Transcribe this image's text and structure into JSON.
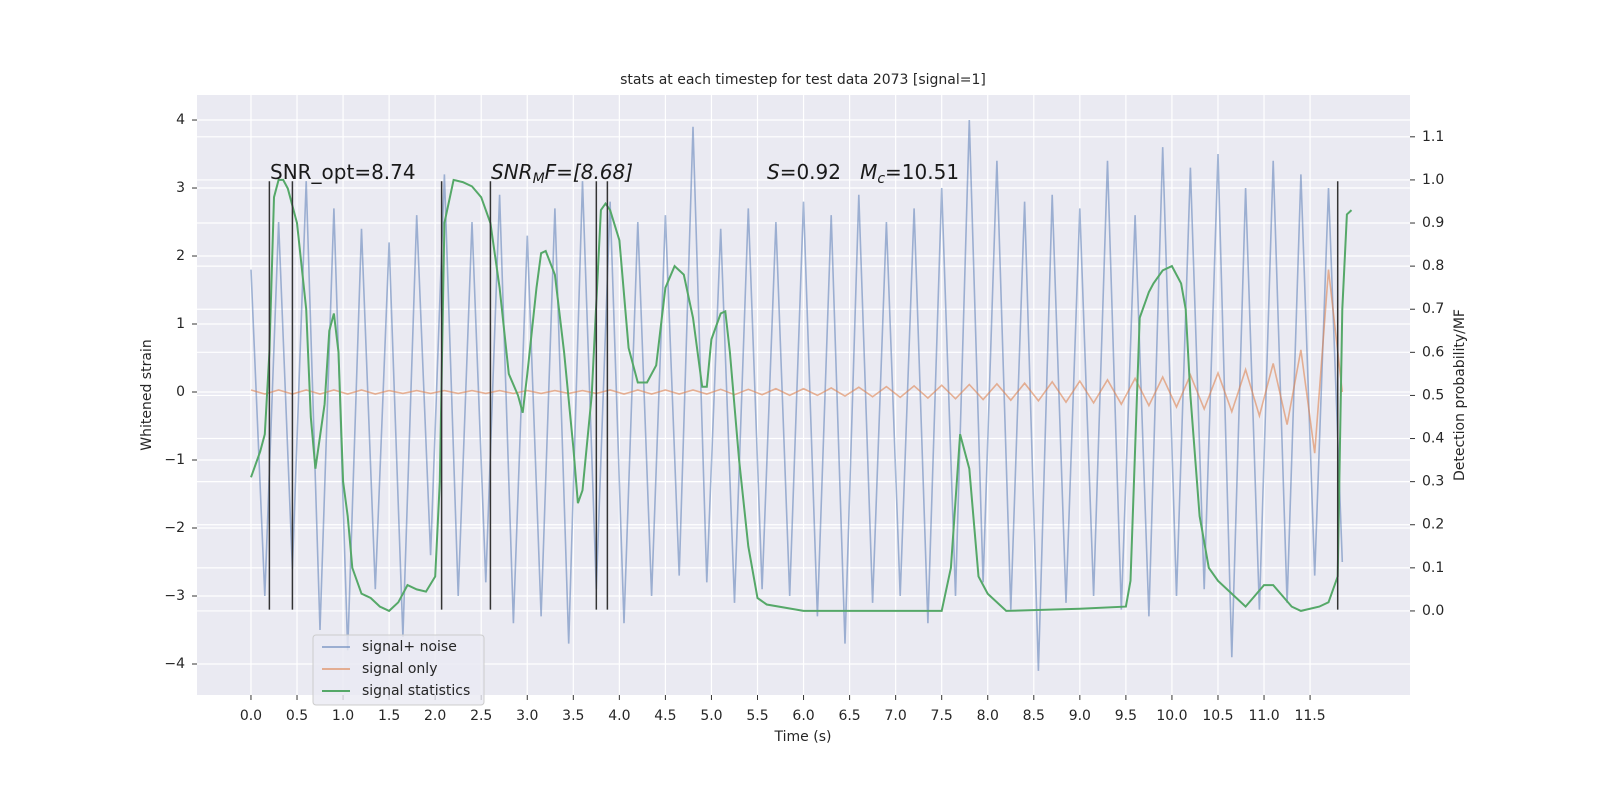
{
  "chart_data": {
    "type": "line",
    "title": "stats at each timestep for test data 2073 [signal=1]",
    "xlabel": "Time (s)",
    "ylabel": "Whitened strain",
    "y2label": "Detection probability/MF",
    "xlim": [
      -0.586,
      12.585
    ],
    "ylim": [
      -4.456,
      4.368
    ],
    "y2lim": [
      -0.195,
      1.197
    ],
    "grid": true,
    "legend": "lower left",
    "xticks": [
      {
        "value": 0,
        "label": "0.0"
      },
      {
        "value": 0.5,
        "label": "0.5"
      },
      {
        "value": 1,
        "label": "1.0"
      },
      {
        "value": 1.5,
        "label": "1.5"
      },
      {
        "value": 2,
        "label": "2.0"
      },
      {
        "value": 2.5,
        "label": "2.5"
      },
      {
        "value": 3,
        "label": "3.0"
      },
      {
        "value": 3.5,
        "label": "3.5"
      },
      {
        "value": 4,
        "label": "4.0"
      },
      {
        "value": 4.5,
        "label": "4.5"
      },
      {
        "value": 5,
        "label": "5.0"
      },
      {
        "value": 5.5,
        "label": "5.5"
      },
      {
        "value": 6,
        "label": "6.0"
      },
      {
        "value": 6.5,
        "label": "6.5"
      },
      {
        "value": 7,
        "label": "7.0"
      },
      {
        "value": 7.5,
        "label": "7.5"
      },
      {
        "value": 8,
        "label": "8.0"
      },
      {
        "value": 8.5,
        "label": "8.5"
      },
      {
        "value": 9,
        "label": "9.0"
      },
      {
        "value": 9.5,
        "label": "9.5"
      },
      {
        "value": 10,
        "label": "10.0"
      },
      {
        "value": 10.5,
        "label": "10.5"
      },
      {
        "value": 11,
        "label": "11.0"
      },
      {
        "value": 11.5,
        "label": "11.5"
      }
    ],
    "yticks": [
      {
        "value": -4,
        "label": "−4"
      },
      {
        "value": -3,
        "label": "−3"
      },
      {
        "value": -2,
        "label": "−2"
      },
      {
        "value": -1,
        "label": "−1"
      },
      0,
      1,
      2,
      3,
      4
    ],
    "y2ticks": [
      {
        "value": 0,
        "label": "0.0"
      },
      {
        "value": 0.1,
        "label": "0.1"
      },
      {
        "value": 0.2,
        "label": "0.2"
      },
      {
        "value": 0.3,
        "label": "0.3"
      },
      {
        "value": 0.4,
        "label": "0.4"
      },
      {
        "value": 0.5,
        "label": "0.5"
      },
      {
        "value": 0.6,
        "label": "0.6"
      },
      {
        "value": 0.7,
        "label": "0.7"
      },
      {
        "value": 0.8,
        "label": "0.8"
      },
      {
        "value": 0.9,
        "label": "0.9"
      },
      {
        "value": 1,
        "label": "1.0"
      },
      {
        "value": 1.1,
        "label": "1.1"
      }
    ],
    "series": [
      {
        "name": "signal+ noise",
        "color": "#4c72b0",
        "opacity": 0.5,
        "x": [
          0,
          0.15,
          0.3,
          0.45,
          0.6,
          0.75,
          0.9,
          1.05,
          1.2,
          1.35,
          1.5,
          1.65,
          1.8,
          1.95,
          2.1,
          2.25,
          2.4,
          2.55,
          2.7,
          2.85,
          3,
          3.15,
          3.3,
          3.45,
          3.6,
          3.75,
          3.9,
          4.05,
          4.2,
          4.35,
          4.5,
          4.65,
          4.8,
          4.95,
          5.1,
          5.25,
          5.4,
          5.55,
          5.7,
          5.85,
          6,
          6.15,
          6.3,
          6.45,
          6.6,
          6.75,
          6.9,
          7.05,
          7.2,
          7.35,
          7.5,
          7.65,
          7.8,
          7.95,
          8.1,
          8.25,
          8.4,
          8.55,
          8.7,
          8.85,
          9,
          9.15,
          9.3,
          9.45,
          9.6,
          9.75,
          9.9,
          10.05,
          10.2,
          10.35,
          10.5,
          10.65,
          10.8,
          10.95,
          11.1,
          11.25,
          11.4,
          11.55,
          11.7,
          11.85
        ],
        "values": [
          1.8,
          -3.0,
          2.5,
          -2.6,
          3.1,
          -3.5,
          2.7,
          -3.8,
          2.4,
          -2.9,
          2.2,
          -3.6,
          2.6,
          -2.4,
          3.2,
          -3.0,
          2.5,
          -2.8,
          2.9,
          -3.4,
          2.3,
          -3.3,
          2.7,
          -3.7,
          3.1,
          -2.9,
          2.8,
          -3.4,
          2.5,
          -3.0,
          2.6,
          -2.7,
          3.9,
          -2.8,
          2.4,
          -3.1,
          2.7,
          -2.9,
          2.5,
          -3.0,
          2.8,
          -3.3,
          2.6,
          -3.7,
          2.9,
          -3.1,
          2.5,
          -3.0,
          2.7,
          -3.4,
          3.0,
          -3.0,
          4.0,
          -2.8,
          3.4,
          -3.2,
          2.8,
          -4.1,
          2.9,
          -3.1,
          2.7,
          -3.0,
          3.4,
          -3.2,
          2.6,
          -3.3,
          3.6,
          -3.0,
          3.3,
          -2.9,
          3.5,
          -3.9,
          3.0,
          -3.2,
          3.4,
          -3.1,
          3.2,
          -2.7,
          3.0,
          -2.5
        ]
      },
      {
        "name": "signal only",
        "color": "#dd8452",
        "opacity": 0.6,
        "x": [
          0,
          0.15,
          0.3,
          0.45,
          0.6,
          0.75,
          0.9,
          1.05,
          1.2,
          1.35,
          1.5,
          1.65,
          1.8,
          1.95,
          2.1,
          2.25,
          2.4,
          2.55,
          2.7,
          2.85,
          3,
          3.15,
          3.3,
          3.45,
          3.6,
          3.75,
          3.9,
          4.05,
          4.2,
          4.35,
          4.5,
          4.65,
          4.8,
          4.95,
          5.1,
          5.25,
          5.4,
          5.55,
          5.7,
          5.85,
          6,
          6.15,
          6.3,
          6.45,
          6.6,
          6.75,
          6.9,
          7.05,
          7.2,
          7.35,
          7.5,
          7.65,
          7.8,
          7.95,
          8.1,
          8.25,
          8.4,
          8.55,
          8.7,
          8.85,
          9,
          9.15,
          9.3,
          9.45,
          9.6,
          9.75,
          9.9,
          10.05,
          10.2,
          10.35,
          10.5,
          10.65,
          10.8,
          10.95,
          11.1,
          11.25,
          11.4,
          11.55,
          11.7,
          11.85
        ],
        "values": [
          0.03,
          -0.03,
          0.03,
          -0.03,
          0.03,
          -0.03,
          0.03,
          -0.03,
          0.03,
          -0.03,
          0.02,
          -0.02,
          0.02,
          -0.02,
          0.02,
          -0.02,
          0.02,
          -0.02,
          0.02,
          -0.02,
          0.02,
          -0.02,
          0.02,
          -0.02,
          0.02,
          -0.02,
          0.03,
          -0.03,
          0.03,
          -0.03,
          0.03,
          -0.03,
          0.03,
          -0.03,
          0.04,
          -0.04,
          0.04,
          -0.04,
          0.05,
          -0.05,
          0.05,
          -0.05,
          0.06,
          -0.06,
          0.07,
          -0.07,
          0.08,
          -0.08,
          0.09,
          -0.09,
          0.1,
          -0.1,
          0.11,
          -0.11,
          0.12,
          -0.12,
          0.13,
          -0.13,
          0.15,
          -0.15,
          0.16,
          -0.16,
          0.18,
          -0.18,
          0.2,
          -0.2,
          0.22,
          -0.22,
          0.25,
          -0.25,
          0.28,
          -0.29,
          0.33,
          -0.35,
          0.42,
          -0.48,
          0.62,
          -0.9,
          1.8,
          0.0
        ]
      },
      {
        "name": "signal statistics",
        "color": "#55a868",
        "opacity": 1,
        "axis": "y2",
        "x": [
          0.0,
          0.1,
          0.15,
          0.2,
          0.25,
          0.3,
          0.35,
          0.4,
          0.5,
          0.6,
          0.65,
          0.7,
          0.8,
          0.85,
          0.9,
          0.95,
          1.0,
          1.05,
          1.1,
          1.2,
          1.3,
          1.4,
          1.5,
          1.6,
          1.7,
          1.8,
          1.9,
          2.0,
          2.05,
          2.1,
          2.2,
          2.3,
          2.4,
          2.5,
          2.6,
          2.7,
          2.8,
          2.9,
          2.95,
          3.0,
          3.1,
          3.15,
          3.2,
          3.3,
          3.4,
          3.5,
          3.55,
          3.6,
          3.7,
          3.8,
          3.85,
          3.9,
          4.0,
          4.1,
          4.2,
          4.3,
          4.4,
          4.5,
          4.6,
          4.7,
          4.8,
          4.9,
          4.95,
          5.0,
          5.1,
          5.15,
          5.2,
          5.3,
          5.4,
          5.5,
          5.6,
          6.0,
          6.5,
          7.0,
          7.5,
          7.6,
          7.7,
          7.8,
          7.9,
          8.0,
          8.2,
          9.0,
          9.5,
          9.55,
          9.65,
          9.75,
          9.8,
          9.9,
          10.0,
          10.1,
          10.15,
          10.2,
          10.3,
          10.4,
          10.5,
          10.7,
          10.8,
          11.0,
          11.1,
          11.3,
          11.4,
          11.6,
          11.7,
          11.8,
          11.85,
          11.9,
          11.95
        ],
        "values": [
          0.31,
          0.37,
          0.41,
          0.6,
          0.96,
          1.0,
          1.0,
          0.98,
          0.9,
          0.7,
          0.45,
          0.33,
          0.48,
          0.65,
          0.69,
          0.6,
          0.3,
          0.22,
          0.1,
          0.04,
          0.03,
          0.01,
          0.0,
          0.02,
          0.06,
          0.05,
          0.045,
          0.08,
          0.3,
          0.9,
          1.0,
          0.995,
          0.985,
          0.96,
          0.9,
          0.75,
          0.55,
          0.5,
          0.46,
          0.55,
          0.75,
          0.83,
          0.835,
          0.78,
          0.6,
          0.38,
          0.25,
          0.28,
          0.5,
          0.93,
          0.945,
          0.93,
          0.86,
          0.61,
          0.53,
          0.53,
          0.57,
          0.75,
          0.8,
          0.78,
          0.68,
          0.52,
          0.52,
          0.63,
          0.69,
          0.695,
          0.6,
          0.35,
          0.15,
          0.03,
          0.015,
          0.0,
          0.0,
          0.0,
          0.0,
          0.1,
          0.41,
          0.33,
          0.08,
          0.04,
          0.0,
          0.005,
          0.01,
          0.07,
          0.68,
          0.74,
          0.76,
          0.79,
          0.8,
          0.76,
          0.7,
          0.5,
          0.22,
          0.1,
          0.07,
          0.03,
          0.01,
          0.06,
          0.06,
          0.01,
          0.0,
          0.01,
          0.02,
          0.08,
          0.7,
          0.92,
          0.93
        ]
      }
    ],
    "vlines": {
      "x": [
        0.2,
        0.45,
        2.07,
        2.6,
        3.75,
        3.87,
        11.8
      ],
      "ymin": -3.2,
      "ymax": 3.1,
      "color": "#333333"
    },
    "annotations": [
      [
        "SNR_opt=8.74"
      ],
      [
        "SNR",
        "M",
        "F=[8.68]"
      ],
      [
        "S",
        "=0.92   ",
        "M",
        "c",
        "=10.51"
      ]
    ]
  }
}
